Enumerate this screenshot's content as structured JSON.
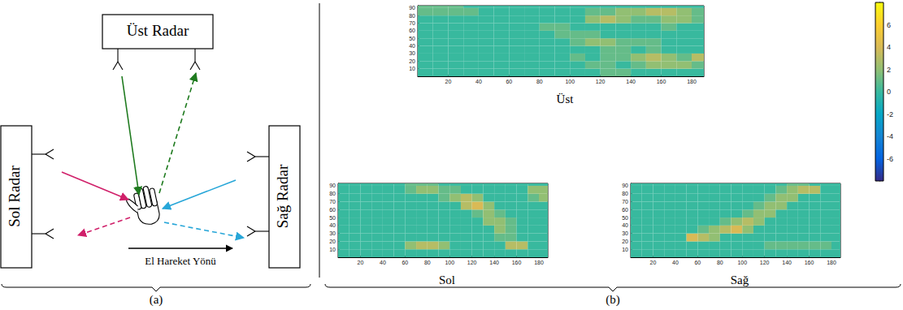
{
  "panel_a": {
    "label": "(a)",
    "top_radar": "Üst Radar",
    "left_radar": "Sol Radar",
    "right_radar": "Sağ Radar",
    "motion": "El Hareket Yönü"
  },
  "panel_b_label": "(b)",
  "colorbar": {
    "zlim": [
      -8,
      8
    ],
    "zticks": [
      -6,
      -4,
      -2,
      0,
      2,
      4,
      6
    ]
  },
  "chart_data": [
    {
      "type": "heatmap",
      "title": "Üst",
      "x": [
        5,
        15,
        25,
        35,
        45,
        55,
        65,
        75,
        85,
        95,
        105,
        115,
        125,
        135,
        145,
        155,
        165,
        175,
        185
      ],
      "y": [
        5,
        15,
        25,
        35,
        45,
        55,
        65,
        75,
        85,
        95
      ],
      "xlim": [
        0,
        188
      ],
      "ylim": [
        0,
        93
      ],
      "xticks": [
        20,
        40,
        60,
        80,
        100,
        120,
        140,
        160,
        180
      ],
      "yticks": [
        10,
        20,
        30,
        40,
        50,
        60,
        70,
        80,
        90
      ],
      "cells": [
        [
          0,
          0,
          0,
          0,
          0,
          0,
          0,
          0,
          0,
          0,
          0,
          0,
          1,
          1,
          0,
          0,
          0,
          0,
          0
        ],
        [
          0,
          0,
          0,
          0,
          0,
          0,
          0,
          0,
          0,
          0,
          0,
          1,
          1,
          0,
          1,
          2,
          2,
          2,
          1
        ],
        [
          0,
          0,
          0,
          0,
          0,
          0,
          0,
          0,
          0,
          0,
          1,
          0,
          1,
          1,
          2,
          3,
          2,
          1,
          3
        ],
        [
          0,
          0,
          0,
          0,
          0,
          0,
          0,
          0,
          0,
          0,
          0,
          0,
          1,
          1,
          0,
          1,
          0,
          0,
          0
        ],
        [
          0,
          0,
          0,
          0,
          0,
          0,
          0,
          0,
          0,
          0,
          1,
          2,
          2,
          1,
          1,
          1,
          0,
          0,
          0
        ],
        [
          0,
          0,
          0,
          0,
          0,
          0,
          0,
          0,
          0,
          1,
          1,
          1,
          0,
          0,
          0,
          0,
          0,
          0,
          0
        ],
        [
          0,
          0,
          0,
          0,
          0,
          0,
          0,
          0,
          1,
          1,
          0,
          0,
          0,
          0,
          0,
          0,
          1,
          0,
          0
        ],
        [
          0,
          0,
          0,
          0,
          0,
          0,
          0,
          0,
          0,
          0,
          0,
          2,
          3,
          2,
          1,
          1,
          2,
          2,
          1
        ],
        [
          1,
          1,
          1,
          1,
          0,
          0,
          0,
          0,
          0,
          0,
          0,
          1,
          1,
          2,
          2,
          3,
          3,
          2,
          1
        ],
        [
          1,
          1,
          1,
          0,
          0,
          0,
          0,
          0,
          0,
          0,
          0,
          0,
          0,
          0,
          0,
          0,
          0,
          0,
          0
        ]
      ]
    },
    {
      "type": "heatmap",
      "title": "Sol",
      "x": [
        5,
        15,
        25,
        35,
        45,
        55,
        65,
        75,
        85,
        95,
        105,
        115,
        125,
        135,
        145,
        155,
        165,
        175,
        185
      ],
      "y": [
        5,
        15,
        25,
        35,
        45,
        55,
        65,
        75,
        85,
        95
      ],
      "xlim": [
        0,
        188
      ],
      "ylim": [
        0,
        93
      ],
      "xticks": [
        20,
        40,
        60,
        80,
        100,
        120,
        140,
        160,
        180
      ],
      "yticks": [
        10,
        20,
        30,
        40,
        50,
        60,
        70,
        80,
        90
      ],
      "cells": [
        [
          0,
          0,
          0,
          0,
          0,
          0,
          0,
          0,
          0,
          0,
          0,
          0,
          0,
          0,
          0,
          0,
          0,
          0,
          0
        ],
        [
          0,
          0,
          0,
          0,
          0,
          0,
          2,
          3,
          3,
          2,
          0,
          0,
          0,
          0,
          0,
          3,
          3,
          0,
          0
        ],
        [
          0,
          0,
          0,
          0,
          0,
          0,
          0,
          0,
          0,
          0,
          0,
          0,
          0,
          0,
          1,
          1,
          0,
          0,
          0
        ],
        [
          0,
          0,
          0,
          0,
          0,
          0,
          0,
          0,
          0,
          0,
          0,
          0,
          0,
          0,
          2,
          1,
          0,
          0,
          0
        ],
        [
          0,
          0,
          0,
          0,
          0,
          0,
          0,
          0,
          0,
          0,
          0,
          0,
          0,
          2,
          2,
          1,
          0,
          0,
          0
        ],
        [
          0,
          0,
          0,
          0,
          0,
          0,
          0,
          0,
          0,
          0,
          0,
          0,
          1,
          2,
          1,
          0,
          0,
          0,
          0
        ],
        [
          0,
          0,
          0,
          0,
          0,
          0,
          0,
          0,
          0,
          0,
          0,
          3,
          4,
          2,
          0,
          0,
          0,
          0,
          0
        ],
        [
          0,
          0,
          0,
          0,
          0,
          0,
          0,
          0,
          0,
          1,
          2,
          3,
          2,
          0,
          0,
          0,
          0,
          1,
          2
        ],
        [
          0,
          0,
          0,
          0,
          0,
          0,
          1,
          2,
          2,
          1,
          1,
          0,
          0,
          0,
          0,
          0,
          0,
          2,
          2
        ],
        [
          0,
          0,
          0,
          0,
          0,
          0,
          1,
          1,
          1,
          0,
          0,
          0,
          0,
          0,
          0,
          0,
          0,
          0,
          0
        ]
      ]
    },
    {
      "type": "heatmap",
      "title": "Sağ",
      "x": [
        5,
        15,
        25,
        35,
        45,
        55,
        65,
        75,
        85,
        95,
        105,
        115,
        125,
        135,
        145,
        155,
        165,
        175,
        185
      ],
      "y": [
        5,
        15,
        25,
        35,
        45,
        55,
        65,
        75,
        85,
        95
      ],
      "xlim": [
        0,
        188
      ],
      "ylim": [
        0,
        93
      ],
      "xticks": [
        20,
        40,
        60,
        80,
        100,
        120,
        140,
        160,
        180
      ],
      "yticks": [
        10,
        20,
        30,
        40,
        50,
        60,
        70,
        80,
        90
      ],
      "cells": [
        [
          0,
          0,
          0,
          0,
          0,
          0,
          0,
          0,
          0,
          0,
          0,
          0,
          0,
          0,
          0,
          0,
          0,
          0,
          0
        ],
        [
          0,
          0,
          0,
          0,
          0,
          0,
          0,
          0,
          0,
          0,
          0,
          0,
          1,
          1,
          1,
          1,
          1,
          1,
          0
        ],
        [
          0,
          0,
          0,
          0,
          0,
          4,
          3,
          2,
          0,
          0,
          0,
          0,
          0,
          0,
          0,
          0,
          0,
          0,
          0
        ],
        [
          0,
          0,
          0,
          0,
          0,
          0,
          1,
          2,
          3,
          4,
          2,
          0,
          0,
          0,
          0,
          0,
          0,
          0,
          0
        ],
        [
          0,
          0,
          0,
          0,
          0,
          0,
          0,
          0,
          1,
          2,
          3,
          2,
          0,
          0,
          0,
          0,
          0,
          0,
          0
        ],
        [
          0,
          0,
          0,
          0,
          0,
          0,
          0,
          0,
          0,
          0,
          1,
          2,
          2,
          0,
          0,
          0,
          0,
          0,
          0
        ],
        [
          0,
          0,
          0,
          0,
          0,
          0,
          0,
          0,
          0,
          0,
          0,
          1,
          2,
          2,
          0,
          0,
          0,
          0,
          0
        ],
        [
          0,
          0,
          0,
          0,
          0,
          0,
          0,
          0,
          0,
          0,
          0,
          0,
          1,
          2,
          2,
          0,
          0,
          0,
          0
        ],
        [
          0,
          0,
          0,
          0,
          0,
          0,
          0,
          0,
          0,
          0,
          0,
          0,
          0,
          1,
          2,
          3,
          3,
          0,
          0
        ],
        [
          0,
          0,
          0,
          0,
          0,
          0,
          0,
          0,
          0,
          0,
          0,
          0,
          0,
          0,
          1,
          1,
          0,
          0,
          0
        ]
      ]
    }
  ]
}
